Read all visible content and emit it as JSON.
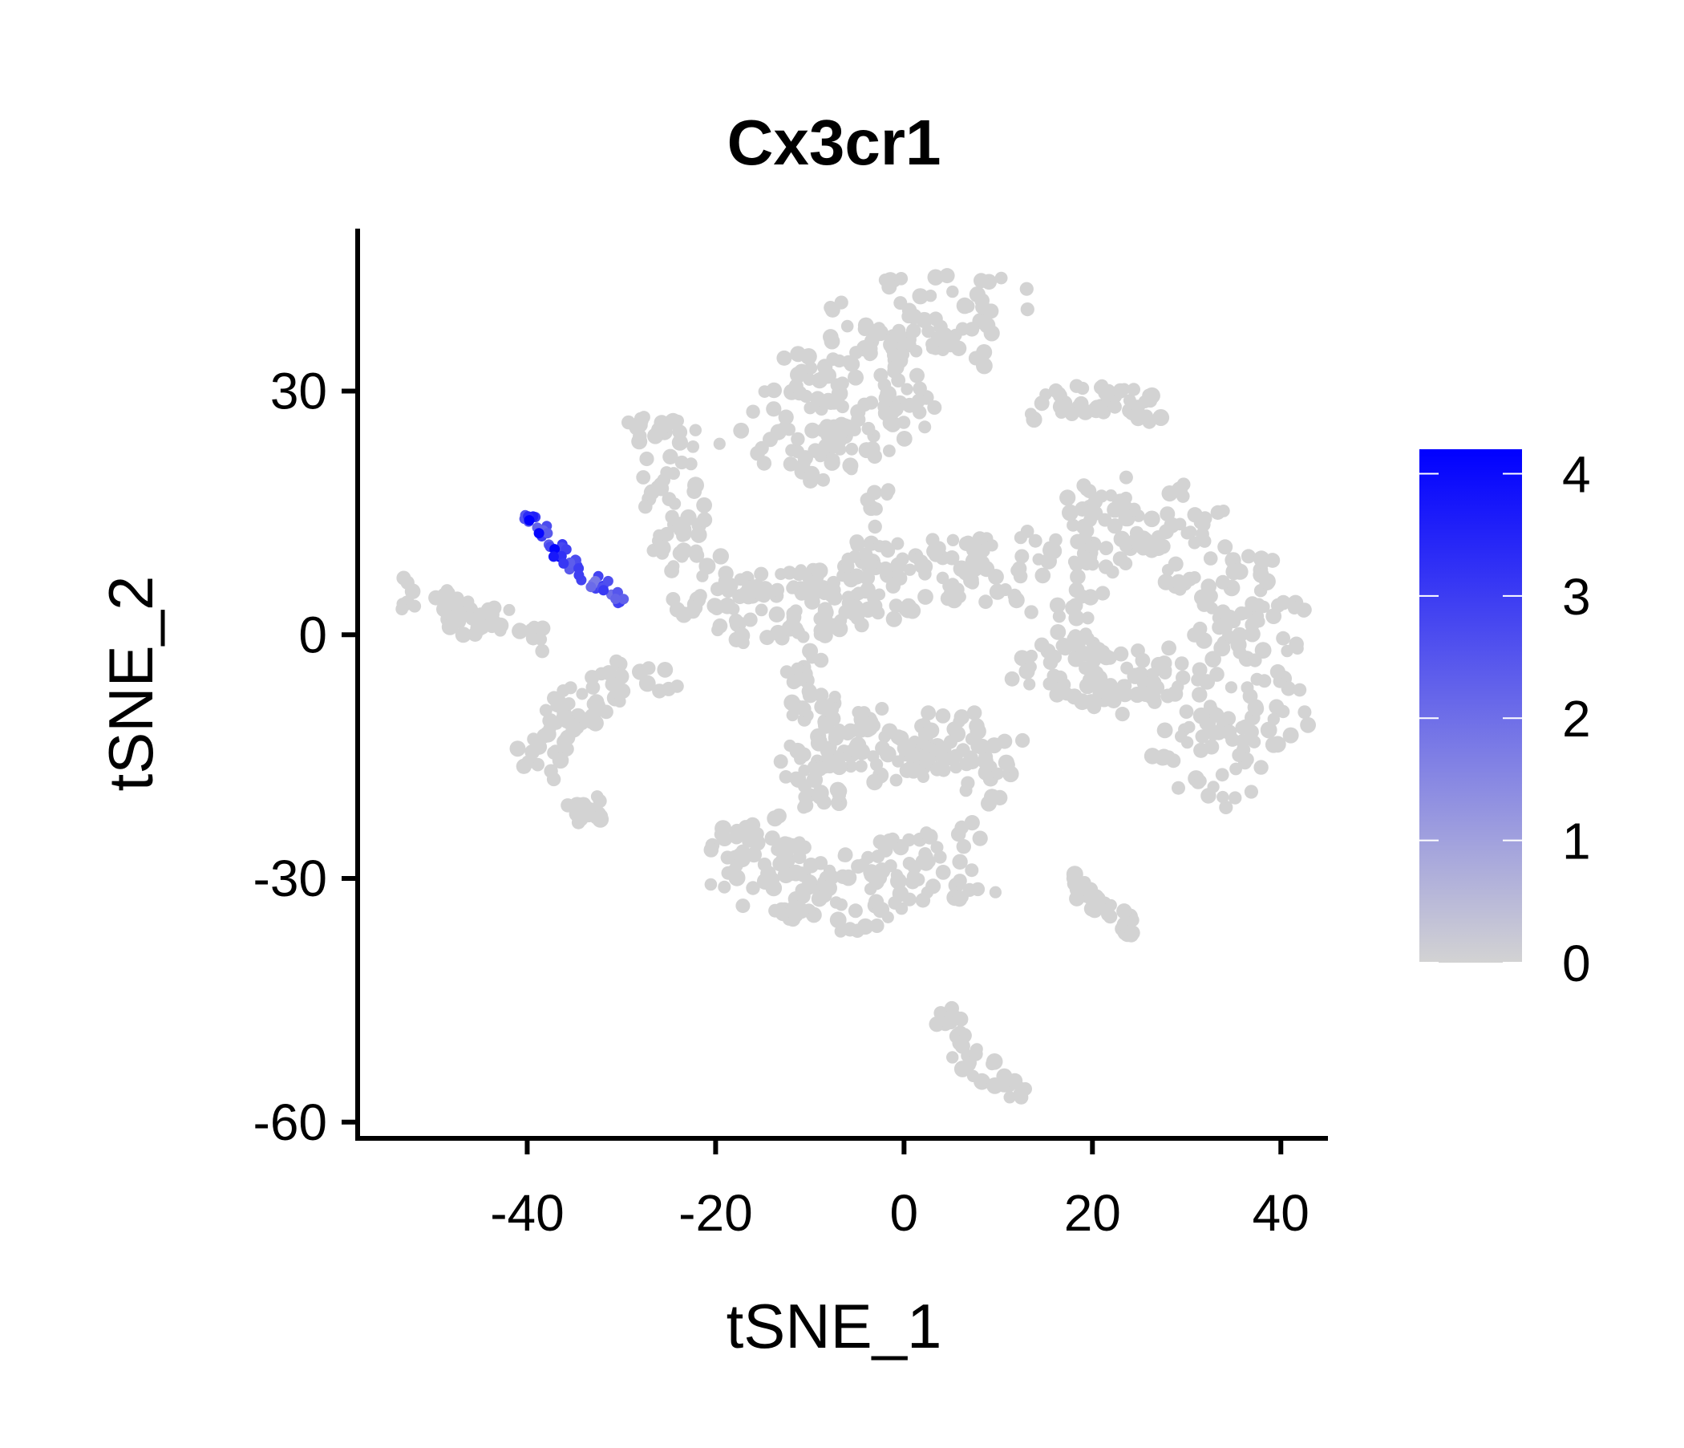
{
  "chart_data": {
    "type": "scatter",
    "title": "Cx3cr1",
    "xlabel": "tSNE_1",
    "ylabel": "tSNE_2",
    "xlim": [
      -58,
      45
    ],
    "ylim": [
      -62,
      50
    ],
    "x_ticks": [
      -40,
      -20,
      0,
      20,
      40
    ],
    "y_ticks": [
      -60,
      -30,
      0,
      30
    ],
    "x_tick_labels": [
      "-40",
      "-20",
      "0",
      "20",
      "40"
    ],
    "y_tick_labels": [
      "-60",
      "-30",
      "0",
      "30"
    ],
    "grid": false,
    "legend": {
      "type": "colorbar",
      "position": "right",
      "min": 0,
      "max": 4.2,
      "ticks": [
        0,
        1,
        2,
        3,
        4
      ],
      "tick_labels": [
        "0",
        "1",
        "2",
        "3",
        "4"
      ],
      "low_color": "#d3d3d3",
      "high_color": "#0000ff"
    },
    "clusters": [
      {
        "path": [
          [
            -54,
            6
          ],
          [
            -50,
            4
          ],
          [
            -46,
            2
          ],
          [
            -42,
            1
          ],
          [
            -38,
            0
          ]
        ],
        "width": 2.2,
        "n": 45,
        "value": 0
      },
      {
        "path": [
          [
            -40,
            -17
          ],
          [
            -38,
            -13
          ],
          [
            -35,
            -9
          ],
          [
            -30,
            -6
          ],
          [
            -25,
            -4
          ]
        ],
        "width": 2.6,
        "n": 70,
        "value": 0
      },
      {
        "path": [
          [
            -36,
            -23
          ],
          [
            -34,
            -21
          ],
          [
            -32,
            -21
          ]
        ],
        "width": 1.8,
        "n": 15,
        "value": 0
      },
      {
        "path": [
          [
            -27,
            27
          ],
          [
            -25,
            20
          ],
          [
            -25,
            14
          ],
          [
            -23,
            8
          ],
          [
            -21,
            3
          ]
        ],
        "width": 3.5,
        "n": 80,
        "value": 0
      },
      {
        "path": [
          [
            -14,
            20
          ],
          [
            -8,
            30
          ],
          [
            -2,
            38
          ],
          [
            5,
            40
          ],
          [
            11,
            37
          ]
        ],
        "width": 5.5,
        "n": 170,
        "value": 0
      },
      {
        "path": [
          [
            -8,
            22
          ],
          [
            -4,
            24
          ],
          [
            2,
            30
          ]
        ],
        "width": 3.0,
        "n": 40,
        "value": 0
      },
      {
        "path": [
          [
            13,
            28
          ],
          [
            18,
            29
          ],
          [
            22,
            29
          ],
          [
            27,
            28
          ]
        ],
        "width": 2.0,
        "n": 45,
        "value": 0
      },
      {
        "path": [
          [
            -20,
            3
          ],
          [
            -10,
            4
          ],
          [
            0,
            7
          ],
          [
            10,
            8
          ]
        ],
        "width": 4.5,
        "n": 160,
        "value": 0
      },
      {
        "path": [
          [
            -3,
            18
          ],
          [
            -4,
            12
          ],
          [
            -6,
            6
          ],
          [
            -8,
            1
          ]
        ],
        "width": 1.5,
        "n": 25,
        "value": 0
      },
      {
        "path": [
          [
            -10,
            -2
          ],
          [
            -10,
            -7
          ],
          [
            -9,
            -12
          ]
        ],
        "width": 2.2,
        "n": 30,
        "value": 0
      },
      {
        "path": [
          [
            -18,
            -23
          ],
          [
            -15,
            -29
          ],
          [
            -8,
            -32
          ],
          [
            0,
            -30
          ],
          [
            8,
            -27
          ]
        ],
        "width": 5.0,
        "n": 170,
        "value": 0
      },
      {
        "path": [
          [
            -12,
            -18
          ],
          [
            -6,
            -16
          ],
          [
            0,
            -12
          ],
          [
            6,
            -14
          ],
          [
            11,
            -18
          ]
        ],
        "width": 4.5,
        "n": 150,
        "value": 0
      },
      {
        "path": [
          [
            13,
            3
          ],
          [
            18,
            12
          ],
          [
            26,
            15
          ],
          [
            33,
            10
          ],
          [
            38,
            0
          ],
          [
            36,
            -13
          ],
          [
            30,
            -18
          ]
        ],
        "width": 5.5,
        "n": 260,
        "value": 0
      },
      {
        "path": [
          [
            14,
            -2
          ],
          [
            20,
            -5
          ],
          [
            26,
            -7
          ],
          [
            30,
            -3
          ]
        ],
        "width": 4.0,
        "n": 100,
        "value": 0
      },
      {
        "path": [
          [
            17,
            -30
          ],
          [
            21,
            -33
          ],
          [
            25,
            -37
          ]
        ],
        "width": 1.2,
        "n": 30,
        "value": 0
      },
      {
        "path": [
          [
            4,
            -46
          ],
          [
            6,
            -51
          ],
          [
            10,
            -55
          ],
          [
            13,
            -56
          ]
        ],
        "width": 1.6,
        "n": 40,
        "value": 0
      },
      {
        "path": [
          [
            -40,
            15
          ],
          [
            -38,
            12
          ],
          [
            -35,
            8
          ],
          [
            -30,
            4
          ]
        ],
        "width": 1.0,
        "n": 40,
        "value": 2.4
      },
      {
        "path": [
          [
            -40,
            15
          ],
          [
            -37,
            10
          ],
          [
            -34,
            7
          ]
        ],
        "width": 0.6,
        "n": 10,
        "value": 3.6
      }
    ]
  }
}
